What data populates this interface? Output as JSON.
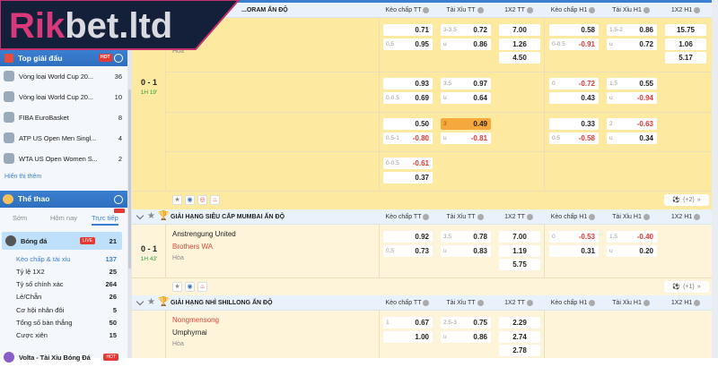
{
  "logo": {
    "text": "Rikbet.ltd"
  },
  "sidebar": {
    "top_title": "Top giải đấu",
    "hot_badge": "HOT",
    "top_items": [
      {
        "label": "Vòng loại World Cup 20...",
        "count": "36",
        "icon": "worldcup-trophy-icon"
      },
      {
        "label": "Vòng loại World Cup 20...",
        "count": "10",
        "icon": "worldcup-globe-icon"
      },
      {
        "label": "FIBA EuroBasket",
        "count": "8",
        "icon": "eurobasket-icon"
      },
      {
        "label": "ATP US Open Men Singl...",
        "count": "4",
        "icon": "tennis-icon"
      },
      {
        "label": "WTA US Open Women S...",
        "count": "2",
        "icon": "tennis-icon"
      }
    ],
    "show_more": "Hiển thị thêm",
    "sports_title": "Thể thao",
    "tabs": [
      {
        "label": "Sớm"
      },
      {
        "label": "Hôm nay"
      },
      {
        "label": "Trực tiếp",
        "active": true
      }
    ],
    "sport": {
      "label": "Bóng đá",
      "badge": "LIVE",
      "count": "21"
    },
    "sub_items": [
      {
        "label": "Kèo chấp & tài xỉu",
        "count": "137",
        "active": true
      },
      {
        "label": "Tỷ lệ 1X2",
        "count": "25"
      },
      {
        "label": "Tỷ số chính xác",
        "count": "264"
      },
      {
        "label": "Lẻ/Chẵn",
        "count": "26"
      },
      {
        "label": "Cơ hội nhân đôi",
        "count": "5"
      },
      {
        "label": "Tổng số bàn thắng",
        "count": "50"
      },
      {
        "label": "Cược xiên",
        "count": "15"
      }
    ],
    "volta": {
      "label": "Volta - Tài Xỉu Bóng Đá",
      "badge": "HOT"
    }
  },
  "columns": [
    "Kèo chấp TT",
    "Tài Xỉu TT",
    "1X2 TT",
    "Kèo chấp H1",
    "Tài Xỉu H1",
    "1X2 H1"
  ],
  "colors": {
    "accent": "#2e6fbf",
    "negative": "#e53935",
    "live_time": "#2e9e3e",
    "highlight": "#f7a83c",
    "row_live": "#fde9a0",
    "row_light": "#fdf4da"
  },
  "leagues": [
    {
      "name": "...ORAM ẤN ĐỘ",
      "match": {
        "home": "",
        "away": "",
        "draw": "Hòa",
        "score": "0 - 1",
        "time": "1H 19'",
        "more": "(+2)",
        "rows": [
          [
            [
              [
                "",
                "0.71"
              ],
              [
                "0.5",
                "0.95"
              ]
            ],
            [
              [
                "3-3.5",
                "0.72"
              ],
              [
                "u",
                "0.86"
              ]
            ],
            [
              [
                "",
                "7.00"
              ],
              [
                "",
                "1.26"
              ],
              [
                "",
                "4.50"
              ]
            ],
            [
              [
                "",
                "0.58"
              ],
              [
                "0-0.5",
                "-0.91"
              ]
            ],
            [
              [
                "1.5-2",
                "0.86"
              ],
              [
                "u",
                "0.72"
              ]
            ],
            [
              [
                "",
                "15.75"
              ],
              [
                "",
                "1.06"
              ],
              [
                "",
                "5.17"
              ]
            ]
          ],
          [
            [
              [
                "",
                "0.93"
              ],
              [
                "0-0.5",
                "0.69"
              ]
            ],
            [
              [
                "3.5",
                "0.97"
              ],
              [
                "u",
                "0.64"
              ]
            ],
            [],
            [
              [
                "0",
                "-0.72"
              ],
              [
                "",
                "0.43"
              ]
            ],
            [
              [
                "1.5",
                "0.55"
              ],
              [
                "u",
                "-0.94"
              ]
            ],
            []
          ],
          [
            [
              [
                "",
                "0.50"
              ],
              [
                "0.5-1",
                "-0.80"
              ]
            ],
            [
              [
                "3",
                "0.49",
                true
              ],
              [
                "u",
                "-0.81"
              ]
            ],
            [],
            [
              [
                "",
                "0.33"
              ],
              [
                "0.5",
                "-0.58"
              ]
            ],
            [
              [
                "2",
                "-0.63"
              ],
              [
                "u",
                "0.34"
              ]
            ],
            []
          ],
          [
            [
              [
                "0-0.5",
                "-0.61"
              ],
              [
                "",
                "0.37"
              ]
            ],
            [],
            [],
            [],
            [],
            []
          ]
        ]
      }
    },
    {
      "name": "GIẢI HẠNG SIÊU CẤP MUMBAI ẤN ĐỘ",
      "match": {
        "home": "Anstrengung United",
        "away": "Brothers WA",
        "draw": "Hòa",
        "score": "0 - 1",
        "time": "1H 43'",
        "more": "(+1)",
        "rows": [
          [
            [
              [
                "",
                "0.92"
              ],
              [
                "0.5",
                "0.73"
              ]
            ],
            [
              [
                "3.5",
                "0.78"
              ],
              [
                "u",
                "0.83"
              ]
            ],
            [
              [
                "",
                "7.00"
              ],
              [
                "",
                "1.19"
              ],
              [
                "",
                "5.75"
              ]
            ],
            [
              [
                "0",
                "-0.53"
              ],
              [
                "",
                "0.31"
              ]
            ],
            [
              [
                "1.5",
                "-0.40"
              ],
              [
                "u",
                "0.20"
              ]
            ],
            []
          ]
        ]
      }
    },
    {
      "name": "GIẢI HẠNG NHÌ SHILLONG ẤN ĐỘ",
      "match": {
        "home": "Nongmensong",
        "away": "Umphyrnai",
        "draw": "Hòa",
        "rows": [
          [
            [
              [
                "1",
                "0.67"
              ],
              [
                "",
                "1.00"
              ]
            ],
            [
              [
                "2.5-3",
                "0.75"
              ],
              [
                "u",
                "0.86"
              ]
            ],
            [
              [
                "",
                "2.29"
              ],
              [
                "",
                "2.74"
              ],
              [
                "",
                "2.78"
              ]
            ],
            [],
            [],
            []
          ]
        ]
      }
    }
  ]
}
